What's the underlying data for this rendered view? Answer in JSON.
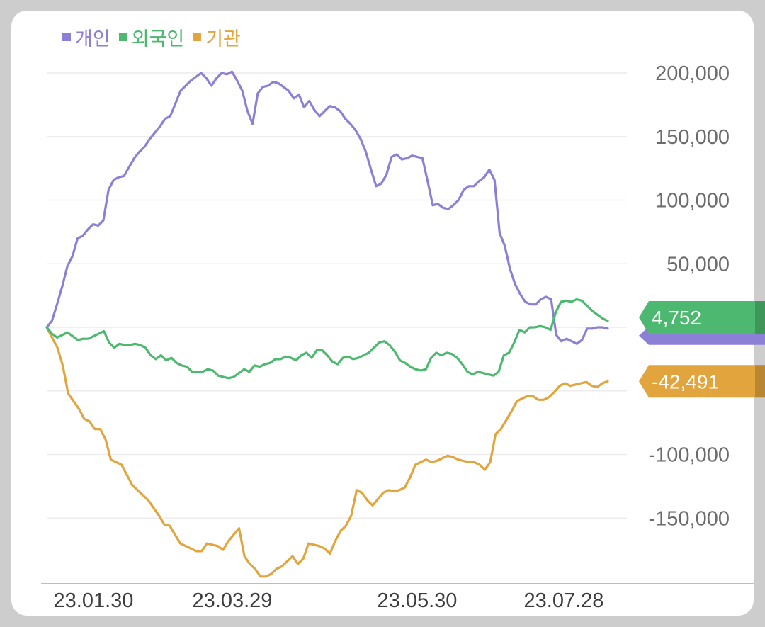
{
  "chart_data": {
    "type": "line",
    "x_ticks": [
      "23.01.30",
      "23.03.29",
      "23.05.30",
      "23.07.28"
    ],
    "ylim": [
      -200000,
      200000
    ],
    "y_ticks": [
      200000,
      150000,
      100000,
      50000,
      0,
      -50000,
      -100000,
      -150000
    ],
    "y_tick_labels": [
      "200,000",
      "150,000",
      "100,000",
      "50,000",
      "",
      "",
      "-100,000",
      "-150,000"
    ],
    "grid": true,
    "legend_position": "top-left",
    "series": [
      {
        "name": "개인",
        "color": "#8b7fd6",
        "values": [
          0,
          5000,
          18000,
          32000,
          48000,
          56000,
          70000,
          72000,
          77000,
          81000,
          80000,
          84000,
          108000,
          116000,
          118000,
          119000,
          126000,
          133000,
          138000,
          142000,
          148000,
          153000,
          158000,
          164000,
          166000,
          176000,
          186000,
          190000,
          194000,
          197000,
          200000,
          196000,
          190000,
          196000,
          200000,
          199000,
          201000,
          194000,
          186000,
          170000,
          160000,
          184000,
          189000,
          190000,
          193000,
          192000,
          189000,
          186000,
          180000,
          183000,
          173000,
          178000,
          171000,
          166000,
          170000,
          174000,
          173000,
          170000,
          164000,
          160000,
          155000,
          148000,
          138000,
          124000,
          111000,
          113000,
          120000,
          134000,
          136000,
          132000,
          133000,
          135000,
          134000,
          133000,
          115000,
          96000,
          97000,
          94000,
          93000,
          96000,
          100000,
          108000,
          111000,
          111000,
          115000,
          118000,
          124000,
          116000,
          74000,
          64000,
          46000,
          34000,
          26000,
          20000,
          18000,
          18000,
          22000,
          24000,
          22000,
          -6000,
          -11000,
          -9000,
          -11000,
          -13000,
          -10000,
          -1000,
          -1000,
          0,
          0,
          -1000
        ]
      },
      {
        "name": "외국인",
        "color": "#4db86f",
        "values": [
          0,
          -5000,
          -8000,
          -6000,
          -4000,
          -7000,
          -10000,
          -9000,
          -9000,
          -7000,
          -5000,
          -3000,
          -12000,
          -16000,
          -13000,
          -14000,
          -14000,
          -13000,
          -14000,
          -16000,
          -22000,
          -25000,
          -22000,
          -26000,
          -24000,
          -28000,
          -30000,
          -31000,
          -35000,
          -35000,
          -35000,
          -33000,
          -34000,
          -38000,
          -39000,
          -40000,
          -39000,
          -36000,
          -33000,
          -35000,
          -30000,
          -31000,
          -29000,
          -28000,
          -25000,
          -25000,
          -23000,
          -24000,
          -26000,
          -22000,
          -20000,
          -24000,
          -18000,
          -18000,
          -22000,
          -27000,
          -29000,
          -24000,
          -23000,
          -25000,
          -24000,
          -22000,
          -20000,
          -16000,
          -12000,
          -11000,
          -14000,
          -19000,
          -26000,
          -28000,
          -31000,
          -33000,
          -34000,
          -33000,
          -24000,
          -20000,
          -22000,
          -20000,
          -21000,
          -24000,
          -29000,
          -35000,
          -37000,
          -35000,
          -36000,
          -37000,
          -38000,
          -35000,
          -22000,
          -20000,
          -12000,
          -2000,
          -4000,
          0,
          0,
          1000,
          0,
          -2000,
          12000,
          20000,
          21000,
          20000,
          22000,
          21000,
          17000,
          13000,
          10000,
          7000,
          5000
        ]
      },
      {
        "name": "기관",
        "color": "#e2a43c",
        "values": [
          0,
          -8000,
          -16000,
          -30000,
          -52000,
          -58000,
          -64000,
          -72000,
          -74000,
          -80000,
          -80000,
          -88000,
          -104000,
          -106000,
          -108000,
          -116000,
          -124000,
          -128000,
          -132000,
          -136000,
          -142000,
          -148000,
          -155000,
          -156000,
          -163000,
          -170000,
          -172000,
          -174000,
          -176000,
          -176000,
          -170000,
          -171000,
          -172000,
          -175000,
          -168000,
          -163000,
          -158000,
          -180000,
          -186000,
          -190000,
          -196000,
          -196000,
          -194000,
          -190000,
          -188000,
          -184000,
          -180000,
          -186000,
          -182000,
          -170000,
          -171000,
          -172000,
          -174000,
          -178000,
          -168000,
          -160000,
          -156000,
          -148000,
          -128000,
          -130000,
          -136000,
          -140000,
          -135000,
          -130000,
          -128000,
          -129000,
          -128000,
          -126000,
          -118000,
          -108000,
          -106000,
          -104000,
          -106000,
          -105000,
          -103000,
          -101000,
          -102000,
          -104000,
          -105000,
          -106000,
          -106000,
          -108000,
          -112000,
          -106000,
          -84000,
          -80000,
          -73000,
          -66000,
          -58000,
          -56000,
          -54000,
          -54000,
          -57000,
          -57000,
          -55000,
          -51000,
          -46000,
          -44000,
          -46000,
          -45000,
          -44000,
          -43000,
          -46000,
          -47000,
          -44000,
          -42491
        ]
      }
    ],
    "end_labels": [
      {
        "series": "외국인",
        "text": "4,752",
        "color": "#4db86f"
      },
      {
        "series": "기관",
        "text": "-42,491",
        "color": "#e2a43c"
      }
    ]
  }
}
